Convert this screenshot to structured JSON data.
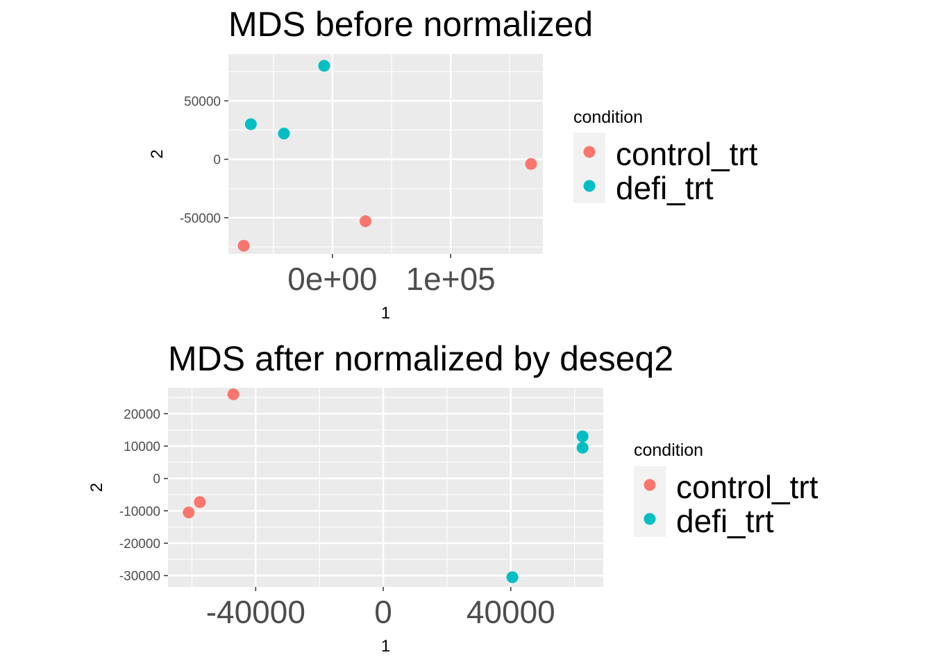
{
  "chart_data": [
    {
      "type": "scatter",
      "title": "MDS before normalized",
      "xlabel": "1",
      "ylabel": "2",
      "xlim": [
        -88000,
        178000
      ],
      "ylim": [
        -81000,
        90000
      ],
      "x_ticks": [
        0,
        100000
      ],
      "x_tick_labels": [
        "0e+00",
        "1e+05"
      ],
      "y_ticks": [
        -50000,
        0,
        50000
      ],
      "y_tick_labels": [
        "-50000",
        "0",
        "50000"
      ],
      "grid": true,
      "legend_title": "condition",
      "legend_placement": "right",
      "series": [
        {
          "name": "control_trt",
          "color": "#F8766D",
          "points": [
            [
              168000,
              -4000
            ],
            [
              28000,
              -53000
            ],
            [
              -75000,
              -74000
            ]
          ]
        },
        {
          "name": "defi_trt",
          "color": "#00BFC4",
          "points": [
            [
              -7000,
              80000
            ],
            [
              -69000,
              30000
            ],
            [
              -41000,
              22000
            ]
          ]
        }
      ]
    },
    {
      "type": "scatter",
      "title": "MDS after normalized by deseq2",
      "xlabel": "1",
      "ylabel": "2",
      "xlim": [
        -67500,
        69000
      ],
      "ylim": [
        -33500,
        28000
      ],
      "x_ticks": [
        -40000,
        0,
        40000
      ],
      "x_tick_labels": [
        "-40000",
        "0",
        "40000"
      ],
      "y_ticks": [
        -30000,
        -20000,
        -10000,
        0,
        10000,
        20000
      ],
      "y_tick_labels": [
        "-30000",
        "-20000",
        "-10000",
        "0",
        "10000",
        "20000"
      ],
      "grid": true,
      "legend_title": "condition",
      "legend_placement": "right",
      "series": [
        {
          "name": "control_trt",
          "color": "#F8766D",
          "points": [
            [
              -47000,
              26000
            ],
            [
              -57500,
              -7300
            ],
            [
              -61000,
              -10500
            ]
          ]
        },
        {
          "name": "defi_trt",
          "color": "#00BFC4",
          "points": [
            [
              62500,
              13000
            ],
            [
              62500,
              9500
            ],
            [
              40500,
              -30500
            ]
          ]
        }
      ]
    }
  ]
}
